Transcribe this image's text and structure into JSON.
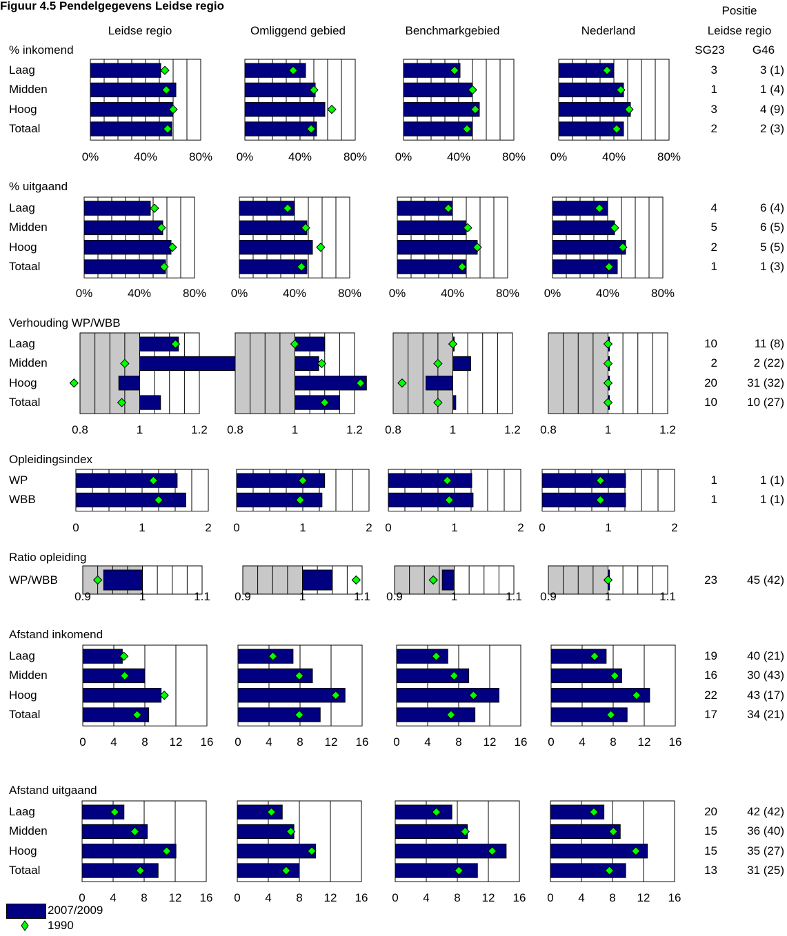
{
  "figure_title": "Figuur 4.5 Pendelgegevens Leidse regio",
  "position_header": {
    "line1": "Positie",
    "line2": "Leidse regio"
  },
  "columns": [
    "Leidse regio",
    "Omliggend gebied",
    "Benchmarkgebied",
    "Nederland"
  ],
  "rank_headers": [
    "SG23",
    "G46"
  ],
  "colors": {
    "bar": "#000080",
    "marker": "#00ff00",
    "gray_zone": "#c8c8c8"
  },
  "legend": [
    {
      "label": "2007/2009",
      "type": "bar"
    },
    {
      "label": "1990",
      "type": "marker"
    }
  ],
  "chart_data": [
    {
      "type": "bar",
      "title": "% inkomend",
      "categories": [
        "Laag",
        "Midden",
        "Hoog",
        "Totaal"
      ],
      "xlim": [
        0,
        80
      ],
      "ticks": [
        "0%",
        "40%",
        "80%"
      ],
      "series": [
        {
          "name": "2007/2009",
          "values": [
            [
              51,
              62,
              60,
              59
            ],
            [
              44,
              51,
              58,
              52
            ],
            [
              41,
              50,
              55,
              50
            ],
            [
              40,
              47,
              52,
              47
            ]
          ]
        },
        {
          "name": "1990",
          "values": [
            [
              54,
              55,
              60,
              56
            ],
            [
              35,
              50,
              63,
              48
            ],
            [
              37,
              50,
              52,
              46
            ],
            [
              35,
              45,
              51,
              42
            ]
          ]
        }
      ],
      "ranks": [
        [
          "3",
          "3 (1)"
        ],
        [
          "1",
          "1 (4)"
        ],
        [
          "3",
          "4 (9)"
        ],
        [
          "2",
          "2 (3)"
        ]
      ]
    },
    {
      "type": "bar",
      "title": "% uitgaand",
      "categories": [
        "Laag",
        "Midden",
        "Hoog",
        "Totaal"
      ],
      "xlim": [
        0,
        80
      ],
      "ticks": [
        "0%",
        "40%",
        "80%"
      ],
      "series": [
        {
          "name": "2007/2009",
          "values": [
            [
              48,
              57,
              63,
              59
            ],
            [
              40,
              49,
              53,
              49
            ],
            [
              40,
              50,
              58,
              50
            ],
            [
              40,
              45,
              53,
              47
            ]
          ]
        },
        {
          "name": "1990",
          "values": [
            [
              51,
              56,
              64,
              58
            ],
            [
              35,
              48,
              59,
              45
            ],
            [
              37,
              51,
              58,
              47
            ],
            [
              34,
              45,
              51,
              41
            ]
          ]
        }
      ],
      "ranks": [
        [
          "4",
          "6 (4)"
        ],
        [
          "5",
          "6 (5)"
        ],
        [
          "2",
          "5 (5)"
        ],
        [
          "1",
          "1 (3)"
        ]
      ]
    },
    {
      "type": "bar",
      "title": "Verhouding WP/WBB",
      "categories": [
        "Laag",
        "Midden",
        "Hoog",
        "Totaal"
      ],
      "xlim": [
        0.8,
        1.2
      ],
      "ticks": [
        "0.8",
        "1",
        "1.2"
      ],
      "baseline": 1,
      "gray_below": 1,
      "series": [
        {
          "name": "2007/2009",
          "values": [
            [
              1.13,
              1.33,
              0.93,
              1.07
            ],
            [
              1.1,
              1.08,
              1.24,
              1.15
            ],
            [
              1.0,
              1.06,
              0.91,
              1.01
            ],
            [
              1.0,
              1.0,
              1.0,
              1.0
            ]
          ]
        },
        {
          "name": "1990",
          "values": [
            [
              1.12,
              0.95,
              0.78,
              0.94
            ],
            [
              1.0,
              1.09,
              1.22,
              1.1
            ],
            [
              1.0,
              0.95,
              0.83,
              0.95
            ],
            [
              1.0,
              1.0,
              1.0,
              1.0
            ]
          ]
        }
      ],
      "ranks": [
        [
          "10",
          "11 (8)"
        ],
        [
          "2",
          "2 (22)"
        ],
        [
          "20",
          "31 (32)"
        ],
        [
          "10",
          "10 (27)"
        ]
      ]
    },
    {
      "type": "bar",
      "title": "Opleidingsindex",
      "categories": [
        "WP",
        "WBB"
      ],
      "xlim": [
        0,
        2
      ],
      "ticks": [
        "0",
        "1",
        "2"
      ],
      "series": [
        {
          "name": "2007/2009",
          "values": [
            [
              1.53,
              1.66
            ],
            [
              1.33,
              1.29
            ],
            [
              1.26,
              1.28
            ],
            [
              1.26,
              1.26
            ]
          ]
        },
        {
          "name": "1990",
          "values": [
            [
              1.17,
              1.25
            ],
            [
              1.0,
              0.96
            ],
            [
              0.89,
              0.92
            ],
            [
              0.88,
              0.88
            ]
          ]
        }
      ],
      "ranks": [
        [
          "1",
          "1 (1)"
        ],
        [
          "1",
          "1 (1)"
        ]
      ]
    },
    {
      "type": "bar",
      "title": "Ratio opleiding",
      "categories": [
        "WP/WBB"
      ],
      "xlim": [
        0.9,
        1.1
      ],
      "ticks": [
        "0.9",
        "1",
        "1.1"
      ],
      "baseline": 1,
      "gray_below": 1,
      "series": [
        {
          "name": "2007/2009",
          "values": [
            [
              0.935
            ],
            [
              1.05
            ],
            [
              0.98
            ],
            [
              1.0
            ]
          ]
        },
        {
          "name": "1990",
          "values": [
            [
              0.925
            ],
            [
              1.09
            ],
            [
              0.965
            ],
            [
              1.0
            ]
          ]
        }
      ],
      "ranks": [
        [
          "23",
          "45 (42)"
        ]
      ]
    },
    {
      "type": "bar",
      "title": "Afstand inkomend",
      "categories": [
        "Laag",
        "Midden",
        "Hoog",
        "Totaal"
      ],
      "xlim": [
        0,
        16
      ],
      "ticks": [
        "0",
        "4",
        "8",
        "12",
        "16"
      ],
      "series": [
        {
          "name": "2007/2009",
          "values": [
            [
              5.1,
              8.0,
              10.1,
              8.5
            ],
            [
              7.1,
              9.6,
              13.8,
              10.6
            ],
            [
              6.6,
              9.3,
              13.2,
              10.1
            ],
            [
              7.1,
              9.1,
              12.7,
              9.8
            ]
          ]
        },
        {
          "name": "1990",
          "values": [
            [
              5.3,
              5.4,
              10.5,
              7.0
            ],
            [
              4.5,
              7.9,
              12.6,
              7.9
            ],
            [
              5.1,
              7.4,
              9.9,
              7.0
            ],
            [
              5.6,
              8.2,
              11.0,
              7.7
            ]
          ]
        }
      ],
      "ranks": [
        [
          "19",
          "40 (21)"
        ],
        [
          "16",
          "30 (43)"
        ],
        [
          "22",
          "43 (17)"
        ],
        [
          "17",
          "34 (21)"
        ]
      ]
    },
    {
      "type": "bar",
      "title": "Afstand uitgaand",
      "categories": [
        "Laag",
        "Midden",
        "Hoog",
        "Totaal"
      ],
      "xlim": [
        0,
        16
      ],
      "ticks": [
        "0",
        "4",
        "8",
        "12",
        "16"
      ],
      "series": [
        {
          "name": "2007/2009",
          "values": [
            [
              5.4,
              8.4,
              12.1,
              9.8
            ],
            [
              5.8,
              7.3,
              10.1,
              8.0
            ],
            [
              7.3,
              9.3,
              14.3,
              10.6
            ],
            [
              6.9,
              9.0,
              12.5,
              9.7
            ]
          ]
        },
        {
          "name": "1990",
          "values": [
            [
              4.2,
              6.8,
              10.9,
              7.5
            ],
            [
              4.4,
              6.9,
              9.6,
              6.3
            ],
            [
              5.3,
              9.0,
              12.5,
              8.2
            ],
            [
              5.6,
              8.1,
              11.0,
              7.6
            ]
          ]
        }
      ],
      "ranks": [
        [
          "20",
          "42 (42)"
        ],
        [
          "15",
          "36 (40)"
        ],
        [
          "15",
          "35 (27)"
        ],
        [
          "13",
          "31 (25)"
        ]
      ]
    }
  ]
}
